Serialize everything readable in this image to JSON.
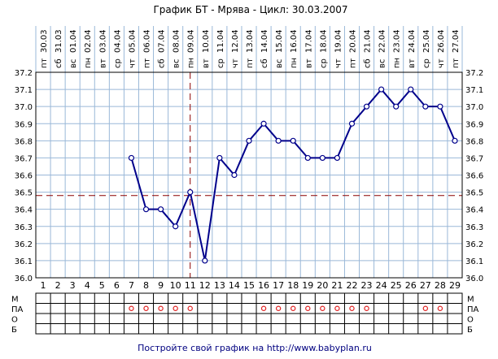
{
  "chart_data": {
    "type": "line",
    "title": "График БТ - Мрява - Цикл: 30.03.2007",
    "cycle_days": [
      1,
      2,
      3,
      4,
      5,
      6,
      7,
      8,
      9,
      10,
      11,
      12,
      13,
      14,
      15,
      16,
      17,
      18,
      19,
      20,
      21,
      22,
      23,
      24,
      25,
      26,
      27,
      28,
      29
    ],
    "weekdays": [
      "пт",
      "сб",
      "вс",
      "пн",
      "вт",
      "ср",
      "чт",
      "пт",
      "сб",
      "вс",
      "пн",
      "вт",
      "ср",
      "чт",
      "пт",
      "сб",
      "вс",
      "пн",
      "вт",
      "ср",
      "чт",
      "пт",
      "сб",
      "вс",
      "пн",
      "вт",
      "ср",
      "чт",
      "пт"
    ],
    "dates": [
      "30.03",
      "31.03",
      "01.04",
      "02.04",
      "03.04",
      "04.04",
      "05.04",
      "06.04",
      "07.04",
      "08.04",
      "09.04",
      "10.04",
      "11.04",
      "12.04",
      "13.04",
      "14.04",
      "15.04",
      "16.04",
      "17.04",
      "18.04",
      "19.04",
      "20.04",
      "21.04",
      "22.04",
      "23.04",
      "24.04",
      "25.04",
      "26.04",
      "27.04"
    ],
    "temperatures": [
      null,
      null,
      null,
      null,
      null,
      null,
      36.7,
      36.4,
      36.4,
      36.3,
      36.5,
      36.1,
      36.7,
      36.6,
      36.8,
      36.9,
      36.8,
      36.8,
      36.7,
      36.7,
      36.7,
      36.9,
      37.0,
      37.1,
      37.0,
      37.1,
      37.0,
      37.0,
      36.8
    ],
    "ylim": [
      36.0,
      37.2
    ],
    "yticks": [
      "36.0",
      "36.1",
      "36.2",
      "36.3",
      "36.4",
      "36.5",
      "36.6",
      "36.7",
      "36.8",
      "36.9",
      "37.0",
      "37.1",
      "37.2"
    ],
    "coverline": 36.48,
    "ovulation_day": 11,
    "grid": true,
    "line_color": "#00008b",
    "grid_color": "#9ab8d8",
    "reference_line_color": "#8b0000"
  },
  "symptom_rows": {
    "labels": [
      "М",
      "ПА",
      "О",
      "Б"
    ],
    "pa_days": [
      7,
      8,
      9,
      10,
      11,
      16,
      17,
      18,
      19,
      20,
      21,
      22,
      23,
      27,
      28
    ],
    "marker_color": "#e02020"
  },
  "footer": {
    "prefix": "Постройте свой график на ",
    "link": "http://www.babyplan.ru"
  }
}
